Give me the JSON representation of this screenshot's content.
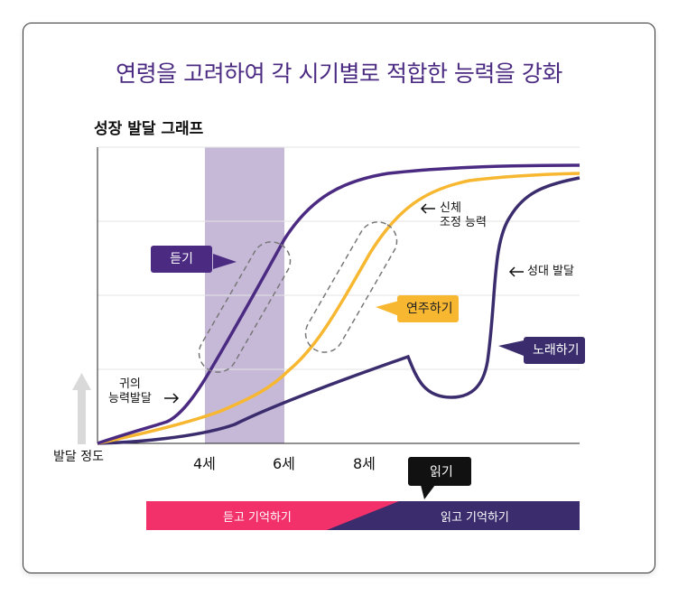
{
  "header": {
    "headline": "연령을 고려하여 각 시기별로 적합한 능력을 강화"
  },
  "chart_data": {
    "type": "line",
    "title": "성장 발달 그래프",
    "ylabel": "발달 정도",
    "x_ticks": [
      "4세",
      "6세",
      "8세"
    ],
    "highlight_band": {
      "from_age": 4,
      "to_age": 6
    },
    "series": [
      {
        "name": "듣기",
        "color": "#4b2a82"
      },
      {
        "name": "연주하기",
        "color": "#f7b731"
      },
      {
        "name": "노래하기",
        "color": "#3b2c6e"
      }
    ],
    "annotations": {
      "ear": "귀의\n능력발달",
      "body_control": "신체\n조정 능력",
      "vocal": "성대 발달"
    },
    "phase_bar": {
      "left_label": "듣고 기억하기",
      "right_label": "읽고 기억하기",
      "marker_label": "읽기",
      "left_color": "#f2306a",
      "right_color": "#3b2c6e"
    }
  }
}
